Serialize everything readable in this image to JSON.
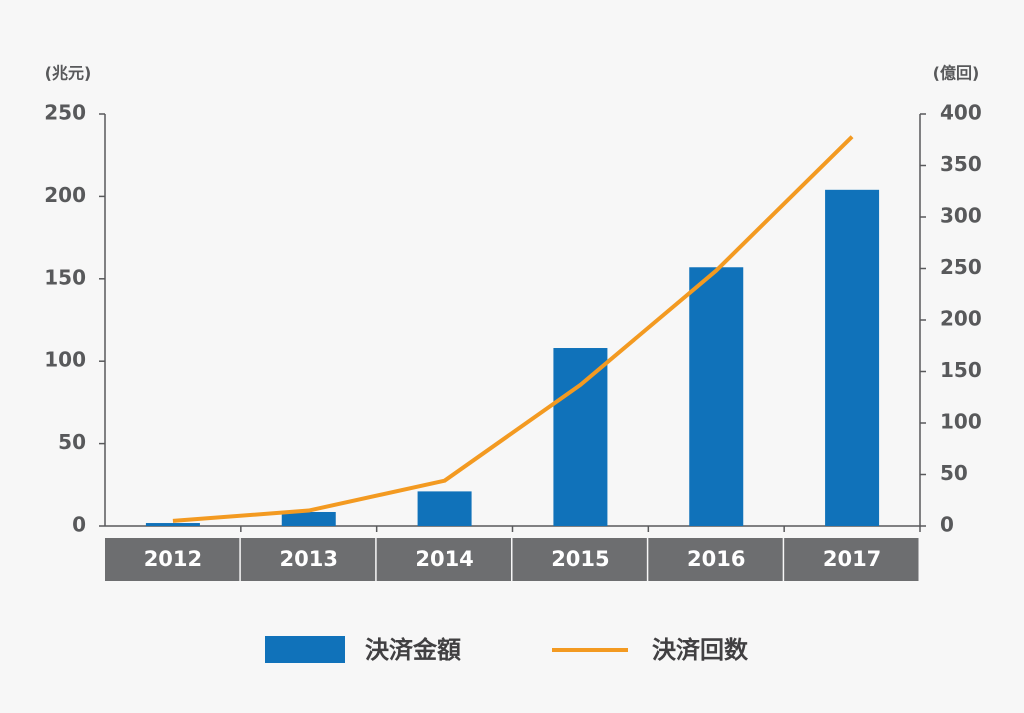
{
  "chart_data": {
    "type": "bar",
    "y_label": "(兆元)",
    "y2_label": "(億回)",
    "categories": [
      "2012",
      "2013",
      "2014",
      "2015",
      "2016",
      "2017"
    ],
    "series": [
      {
        "name": "決済金額",
        "type": "bar",
        "color": "#1072ba",
        "values": [
          1.8,
          8.5,
          21,
          108,
          157,
          204
        ]
      },
      {
        "name": "決済回数",
        "type": "line",
        "axis": "y2",
        "color": "#f39a21",
        "values": [
          5,
          15,
          44,
          137,
          248,
          378
        ]
      }
    ],
    "ylim": [
      0,
      250
    ],
    "yticks": [
      0,
      50,
      100,
      150,
      200,
      250
    ],
    "y2lim": [
      0,
      400
    ],
    "y2ticks": [
      0,
      50,
      100,
      150,
      200,
      250,
      300,
      350,
      400
    ]
  }
}
